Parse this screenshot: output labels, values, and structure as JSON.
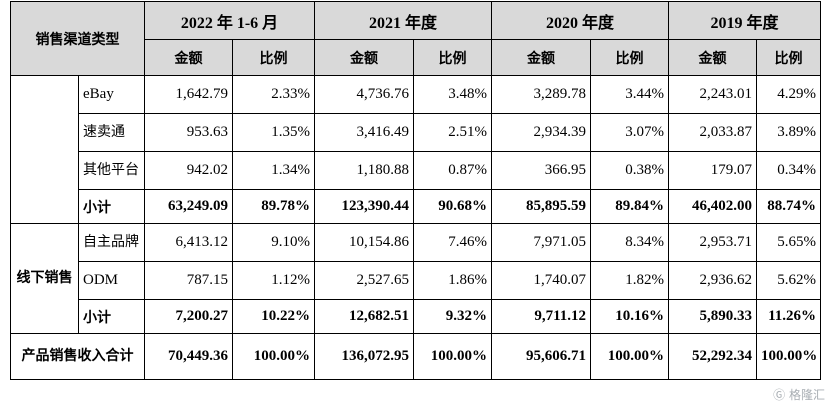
{
  "header": {
    "channel_type": "销售渠道类型",
    "periods": [
      {
        "label": "2022 年 1-6 月"
      },
      {
        "label": "2021 年度"
      },
      {
        "label": "2020 年度"
      },
      {
        "label": "2019 年度"
      }
    ],
    "amount": "金额",
    "ratio": "比例"
  },
  "online": {
    "rows": [
      {
        "channel": "eBay",
        "values": [
          "1,642.79",
          "2.33%",
          "4,736.76",
          "3.48%",
          "3,289.78",
          "3.44%",
          "2,243.01",
          "4.29%"
        ]
      },
      {
        "channel": "速卖通",
        "values": [
          "953.63",
          "1.35%",
          "3,416.49",
          "2.51%",
          "2,934.39",
          "3.07%",
          "2,033.87",
          "3.89%"
        ]
      },
      {
        "channel": "其他平台",
        "values": [
          "942.02",
          "1.34%",
          "1,180.88",
          "0.87%",
          "366.95",
          "0.38%",
          "179.07",
          "0.34%"
        ]
      }
    ],
    "subtotal": {
      "label": "小计",
      "values": [
        "63,249.09",
        "89.78%",
        "123,390.44",
        "90.68%",
        "85,895.59",
        "89.84%",
        "46,402.00",
        "88.74%"
      ]
    }
  },
  "offline": {
    "label": "线下销售",
    "rows": [
      {
        "channel": "自主品牌",
        "values": [
          "6,413.12",
          "9.10%",
          "10,154.86",
          "7.46%",
          "7,971.05",
          "8.34%",
          "2,953.71",
          "5.65%"
        ]
      },
      {
        "channel": "ODM",
        "values": [
          "787.15",
          "1.12%",
          "2,527.65",
          "1.86%",
          "1,740.07",
          "1.82%",
          "2,936.62",
          "5.62%"
        ]
      }
    ],
    "subtotal": {
      "label": "小计",
      "values": [
        "7,200.27",
        "10.22%",
        "12,682.51",
        "9.32%",
        "9,711.12",
        "10.16%",
        "5,890.33",
        "11.26%"
      ]
    }
  },
  "total": {
    "label": "产品销售收入合计",
    "values": [
      "70,449.36",
      "100.00%",
      "136,072.95",
      "100.00%",
      "95,606.71",
      "100.00%",
      "52,292.34",
      "100.00%"
    ]
  },
  "watermark": "格隆汇"
}
